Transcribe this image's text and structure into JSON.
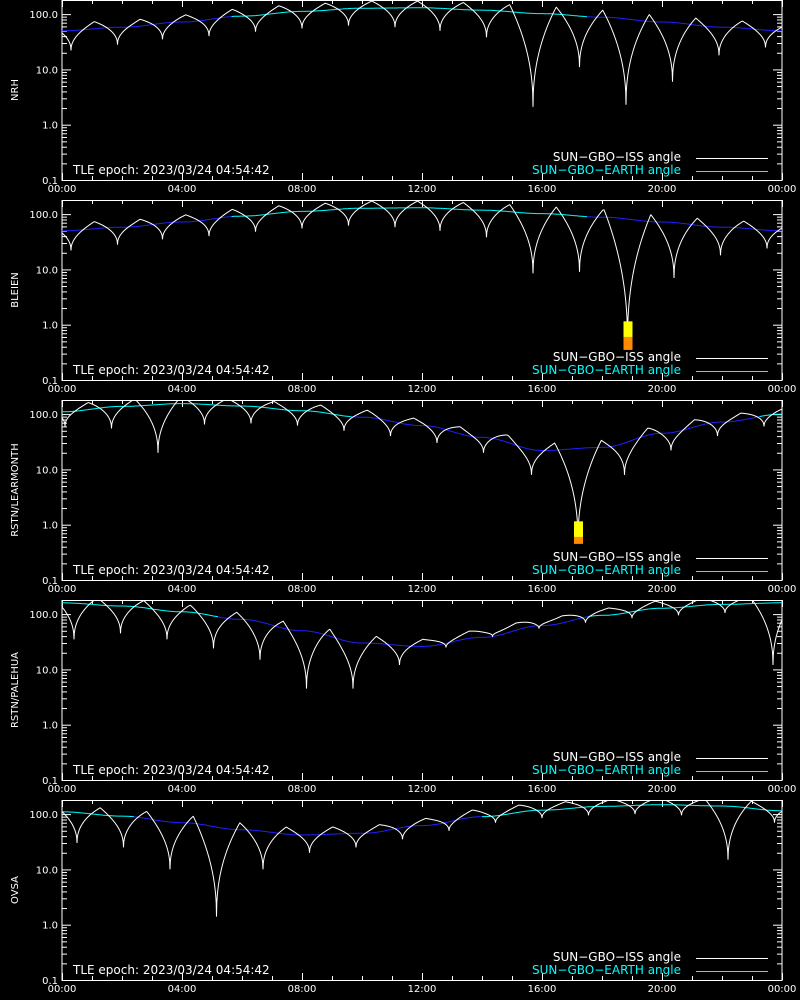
{
  "chart_data": [
    {
      "type": "line",
      "ylabel": "NRH",
      "yscale": "log",
      "ylim": [
        0.1,
        180
      ],
      "xlim": [
        "00:00",
        "24:00"
      ],
      "xticks": [
        "00:00",
        "04:00",
        "08:00",
        "12:00",
        "16:00",
        "20:00",
        "00:00"
      ],
      "yticks": [
        "0.1",
        "1.0",
        "10.0",
        "100.0"
      ],
      "epoch_text": "TLE epoch: 2023/03/24 04:54:42",
      "legend": {
        "position": "bottom-right",
        "iss_label": "SUN−GBO−ISS angle",
        "earth_label": "SUN−GBO−EARTH angle"
      },
      "colors": {
        "iss": "#ffffff",
        "earth_visible": "#00ffff",
        "earth_hidden": "#2020ff",
        "flag_yellow": "#ffff00",
        "flag_orange": "#ff8c00"
      },
      "earth_series": {
        "x": [
          0,
          2,
          4,
          6,
          8,
          10,
          12,
          14,
          16,
          18,
          20,
          22,
          24
        ],
        "y": [
          50,
          58,
          72,
          92,
          112,
          128,
          130,
          118,
          102,
          88,
          72,
          58,
          50
        ],
        "visible_above": 90
      },
      "iss_minima": [
        {
          "t": 0.3,
          "min": 22
        },
        {
          "t": 1.85,
          "min": 28
        },
        {
          "t": 3.35,
          "min": 35
        },
        {
          "t": 4.9,
          "min": 40
        },
        {
          "t": 6.45,
          "min": 48
        },
        {
          "t": 8.0,
          "min": 55
        },
        {
          "t": 9.55,
          "min": 62
        },
        {
          "t": 11.1,
          "min": 58
        },
        {
          "t": 12.6,
          "min": 50
        },
        {
          "t": 14.15,
          "min": 38
        },
        {
          "t": 15.7,
          "min": 2.1
        },
        {
          "t": 17.25,
          "min": 11
        },
        {
          "t": 18.8,
          "min": 2.3
        },
        {
          "t": 20.35,
          "min": 6
        },
        {
          "t": 21.9,
          "min": 18
        },
        {
          "t": 23.45,
          "min": 25
        }
      ],
      "flags": []
    },
    {
      "type": "line",
      "ylabel": "BLEIEN",
      "yscale": "log",
      "ylim": [
        0.1,
        180
      ],
      "xlim": [
        "00:00",
        "24:00"
      ],
      "xticks": [
        "00:00",
        "04:00",
        "08:00",
        "12:00",
        "16:00",
        "20:00",
        "00:00"
      ],
      "yticks": [
        "0.1",
        "1.0",
        "10.0",
        "100.0"
      ],
      "epoch_text": "TLE epoch: 2023/03/24 04:54:42",
      "legend": {
        "position": "bottom-right",
        "iss_label": "SUN−GBO−ISS angle",
        "earth_label": "SUN−GBO−EARTH angle"
      },
      "colors": {
        "iss": "#ffffff",
        "earth_visible": "#00ffff",
        "earth_hidden": "#2020ff",
        "flag_yellow": "#ffff00",
        "flag_orange": "#ff8c00"
      },
      "earth_series": {
        "x": [
          0,
          2,
          4,
          6,
          8,
          10,
          12,
          14,
          16,
          18,
          20,
          22,
          24
        ],
        "y": [
          50,
          58,
          72,
          92,
          112,
          128,
          130,
          118,
          102,
          88,
          72,
          58,
          50
        ],
        "visible_above": 90
      },
      "iss_minima": [
        {
          "t": 0.3,
          "min": 22
        },
        {
          "t": 1.85,
          "min": 28
        },
        {
          "t": 3.35,
          "min": 35
        },
        {
          "t": 4.9,
          "min": 40
        },
        {
          "t": 6.45,
          "min": 48
        },
        {
          "t": 8.0,
          "min": 55
        },
        {
          "t": 9.55,
          "min": 62
        },
        {
          "t": 11.1,
          "min": 58
        },
        {
          "t": 12.6,
          "min": 50
        },
        {
          "t": 14.15,
          "min": 38
        },
        {
          "t": 15.7,
          "min": 8.5
        },
        {
          "t": 17.25,
          "min": 9
        },
        {
          "t": 18.85,
          "min": 0.5
        },
        {
          "t": 20.4,
          "min": 7
        },
        {
          "t": 21.95,
          "min": 18
        },
        {
          "t": 23.5,
          "min": 24
        }
      ],
      "flags": [
        {
          "t": 18.85,
          "top": 1.15,
          "split": 0.6,
          "bottom": 0.35
        }
      ]
    },
    {
      "type": "line",
      "ylabel": "RSTN/LEARMONTH",
      "yscale": "log",
      "ylim": [
        0.1,
        180
      ],
      "xlim": [
        "00:00",
        "24:00"
      ],
      "xticks": [
        "00:00",
        "04:00",
        "08:00",
        "12:00",
        "16:00",
        "20:00",
        "00:00"
      ],
      "yticks": [
        "0.1",
        "1.0",
        "10.0",
        "100.0"
      ],
      "epoch_text": "TLE epoch: 2023/03/24 04:54:42",
      "legend": {
        "position": "bottom-right",
        "iss_label": "SUN−GBO−ISS angle",
        "earth_label": "SUN−GBO−EARTH angle"
      },
      "colors": {
        "iss": "#ffffff",
        "earth_visible": "#00ffff",
        "earth_hidden": "#2020ff",
        "flag_yellow": "#ffff00",
        "flag_orange": "#ff8c00"
      },
      "earth_series": {
        "x": [
          0,
          2,
          4,
          6,
          8,
          10,
          12,
          14,
          16,
          18,
          20,
          22,
          24
        ],
        "y": [
          110,
          138,
          155,
          140,
          115,
          88,
          62,
          38,
          22,
          25,
          45,
          72,
          100
        ],
        "visible_above": 90
      },
      "iss_minima": [
        {
          "t": 0.1,
          "min": 60
        },
        {
          "t": 1.65,
          "min": 55
        },
        {
          "t": 3.2,
          "min": 20
        },
        {
          "t": 4.75,
          "min": 65
        },
        {
          "t": 6.3,
          "min": 68
        },
        {
          "t": 7.85,
          "min": 62
        },
        {
          "t": 9.4,
          "min": 50
        },
        {
          "t": 10.95,
          "min": 40
        },
        {
          "t": 12.5,
          "min": 30
        },
        {
          "t": 14.05,
          "min": 20
        },
        {
          "t": 15.65,
          "min": 8
        },
        {
          "t": 17.2,
          "min": 0.5
        },
        {
          "t": 18.75,
          "min": 8
        },
        {
          "t": 20.3,
          "min": 22
        },
        {
          "t": 21.85,
          "min": 40
        },
        {
          "t": 23.4,
          "min": 60
        }
      ],
      "flags": [
        {
          "t": 17.2,
          "top": 1.15,
          "split": 0.6,
          "bottom": 0.45
        }
      ]
    },
    {
      "type": "line",
      "ylabel": "RSTN/PALEHUA",
      "yscale": "log",
      "ylim": [
        0.1,
        180
      ],
      "xlim": [
        "00:00",
        "24:00"
      ],
      "xticks": [
        "00:00",
        "04:00",
        "08:00",
        "12:00",
        "16:00",
        "20:00",
        "00:00"
      ],
      "yticks": [
        "0.1",
        "1.0",
        "10.0",
        "100.0"
      ],
      "epoch_text": "TLE epoch: 2023/03/24 04:54:42",
      "legend": {
        "position": "bottom-right",
        "iss_label": "SUN−GBO−ISS angle",
        "earth_label": "SUN−GBO−EARTH angle"
      },
      "colors": {
        "iss": "#ffffff",
        "earth_visible": "#00ffff",
        "earth_hidden": "#2020ff",
        "flag_yellow": "#ffff00",
        "flag_orange": "#ff8c00"
      },
      "earth_series": {
        "x": [
          0,
          2,
          4,
          6,
          8,
          10,
          12,
          14,
          16,
          18,
          20,
          22,
          24
        ],
        "y": [
          160,
          140,
          110,
          80,
          50,
          30,
          26,
          38,
          62,
          95,
          128,
          150,
          160
        ],
        "visible_above": 90
      },
      "iss_minima": [
        {
          "t": 0.4,
          "min": 35
        },
        {
          "t": 1.95,
          "min": 45
        },
        {
          "t": 3.5,
          "min": 35
        },
        {
          "t": 5.05,
          "min": 24
        },
        {
          "t": 6.6,
          "min": 15
        },
        {
          "t": 8.15,
          "min": 4.5
        },
        {
          "t": 9.7,
          "min": 4.5
        },
        {
          "t": 11.25,
          "min": 12
        },
        {
          "t": 12.8,
          "min": 25
        },
        {
          "t": 14.35,
          "min": 40
        },
        {
          "t": 15.9,
          "min": 55
        },
        {
          "t": 17.45,
          "min": 70
        },
        {
          "t": 19.0,
          "min": 85
        },
        {
          "t": 20.55,
          "min": 95
        },
        {
          "t": 22.1,
          "min": 105
        },
        {
          "t": 23.7,
          "min": 12
        }
      ],
      "flags": []
    },
    {
      "type": "line",
      "ylabel": "OVSA",
      "yscale": "log",
      "ylim": [
        0.1,
        180
      ],
      "xlim": [
        "00:00",
        "24:00"
      ],
      "xticks": [
        "00:00",
        "04:00",
        "08:00",
        "12:00",
        "16:00",
        "20:00",
        "00:00"
      ],
      "yticks": [
        "0.1",
        "1.0",
        "10.0",
        "100.0"
      ],
      "epoch_text": "TLE epoch: 2023/03/24 04:54:42",
      "legend": {
        "position": "bottom-right",
        "iss_label": "SUN−GBO−ISS angle",
        "earth_label": "SUN−GBO−EARTH angle"
      },
      "colors": {
        "iss": "#ffffff",
        "earth_visible": "#00ffff",
        "earth_hidden": "#2020ff",
        "flag_yellow": "#ffff00",
        "flag_orange": "#ff8c00"
      },
      "earth_series": {
        "x": [
          0,
          2,
          4,
          6,
          8,
          10,
          12,
          14,
          16,
          18,
          20,
          22,
          24
        ],
        "y": [
          110,
          92,
          70,
          52,
          42,
          45,
          62,
          90,
          118,
          138,
          148,
          140,
          115
        ],
        "visible_above": 90
      },
      "iss_minima": [
        {
          "t": 0.5,
          "min": 30
        },
        {
          "t": 2.05,
          "min": 25
        },
        {
          "t": 3.6,
          "min": 10
        },
        {
          "t": 5.15,
          "min": 1.4
        },
        {
          "t": 6.7,
          "min": 10
        },
        {
          "t": 8.25,
          "min": 20
        },
        {
          "t": 9.8,
          "min": 25
        },
        {
          "t": 11.35,
          "min": 35
        },
        {
          "t": 12.9,
          "min": 50
        },
        {
          "t": 14.45,
          "min": 70
        },
        {
          "t": 16.0,
          "min": 85
        },
        {
          "t": 17.55,
          "min": 95
        },
        {
          "t": 19.1,
          "min": 100
        },
        {
          "t": 20.65,
          "min": 95
        },
        {
          "t": 22.2,
          "min": 15
        },
        {
          "t": 23.75,
          "min": 70
        }
      ],
      "flags": []
    }
  ]
}
